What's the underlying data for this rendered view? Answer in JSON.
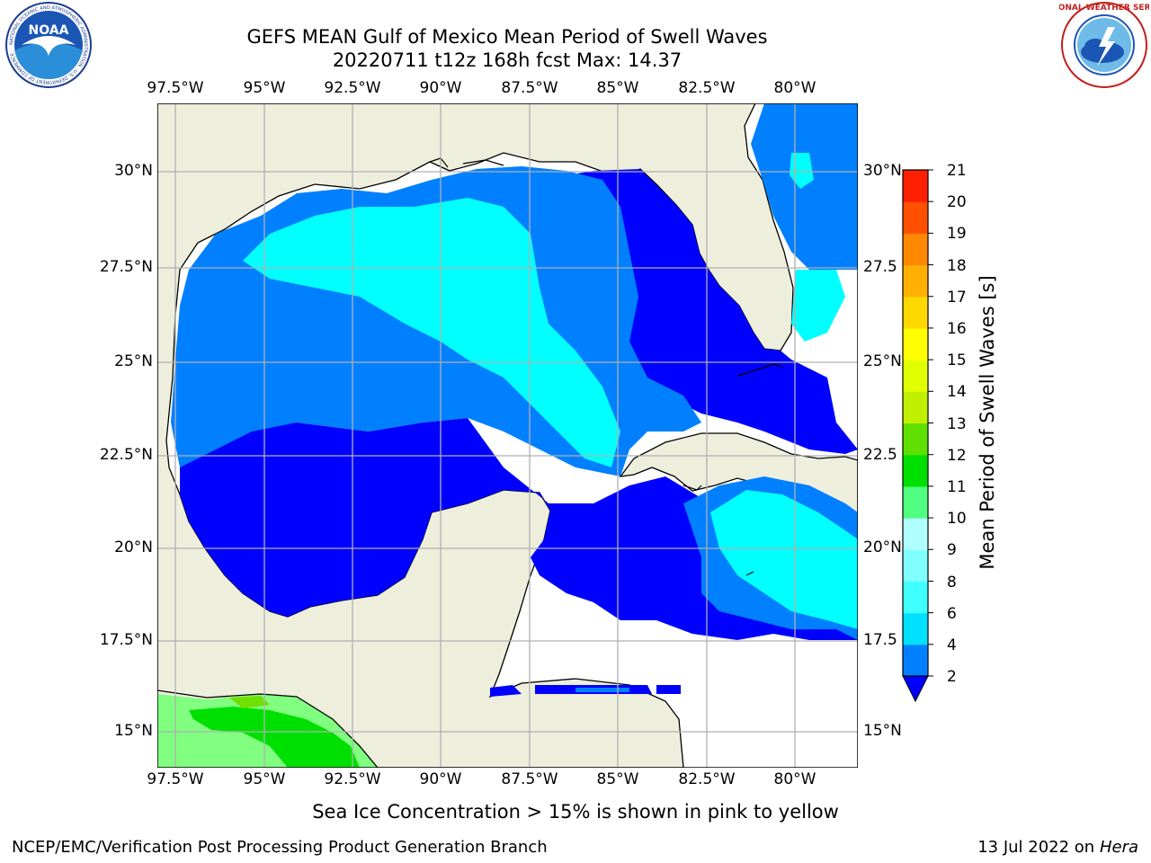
{
  "header": {
    "title_line1": "GEFS MEAN Gulf of Mexico Mean Period of Swell Waves",
    "title_line2": "20220711 t12z 168h fcst   Max: 14.37"
  },
  "logos": {
    "left": "NOAA",
    "left_ring": "NATIONAL OCEANIC AND ATMOSPHERIC ADMINISTRATION · U.S. DEPARTMENT OF COMMERCE ·",
    "right_ring": "NATIONAL WEATHER SERVICE"
  },
  "map": {
    "lon_labels": [
      "97.5°W",
      "95°W",
      "92.5°W",
      "90°W",
      "87.5°W",
      "85°W",
      "82.5°W",
      "80°W"
    ],
    "lat_labels_left": [
      "30°N",
      "27.5°N",
      "25°N",
      "22.5°N",
      "20°N",
      "17.5°N",
      "15°N"
    ],
    "lat_labels_right": [
      "30°N",
      "27.5",
      "25°N",
      "22.5",
      "20°N",
      "17.5",
      "15°N"
    ],
    "colors": {
      "land": "#eeeedd",
      "grid": "#b0b0b0",
      "coast": "#000000"
    }
  },
  "colorbar": {
    "label": "Mean Period of Swell Waves [s]",
    "ticks": [
      "2",
      "4",
      "6",
      "8",
      "9",
      "10",
      "11",
      "12",
      "13",
      "14",
      "15",
      "16",
      "17",
      "18",
      "19",
      "20",
      "21"
    ],
    "colors": [
      "#0000ff",
      "#0080ff",
      "#00e0ff",
      "#40ffff",
      "#80ffff",
      "#b0ffff",
      "#50ff80",
      "#00e000",
      "#60e000",
      "#c0f000",
      "#e0ff00",
      "#ffff00",
      "#ffd800",
      "#ffb000",
      "#ff8800",
      "#ff5000",
      "#ff2000",
      "#ff0000"
    ]
  },
  "footer": {
    "caption": "Sea Ice Concentration > 15% is shown in pink to yellow",
    "branch": "NCEP/EMC/Verification Post Processing Product Generation Branch",
    "date": "13 Jul 2022 on ",
    "host": "Hera"
  }
}
